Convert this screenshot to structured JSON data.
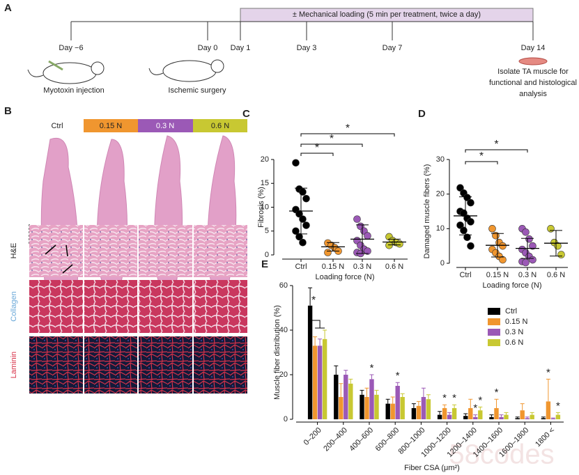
{
  "panel_a": {
    "letter": "A",
    "loading": "± Mechanical loading (5 min per treatment, twice a day)",
    "days": [
      "Day −6",
      "Day 0",
      "Day 1",
      "Day 3",
      "Day 7",
      "Day 14"
    ],
    "steps": [
      "Myotoxin injection",
      "Ischemic surgery"
    ],
    "outcome": [
      "Isolate TA muscle for",
      "functional and histological",
      "analysis"
    ]
  },
  "panel_b": {
    "letter": "B",
    "groups": [
      "Ctrl",
      "0.15 N",
      "0.3 N",
      "0.6 N"
    ],
    "stains": [
      "H&E",
      "Collagen",
      "Laminin"
    ]
  },
  "watermark": "58codes",
  "chart_data": [
    {
      "type": "dot",
      "panel": "C",
      "categories": [
        "Ctrl",
        "0.15 N",
        "0.3 N",
        "0.6 N"
      ],
      "colors": [
        "#000000",
        "#f0962f",
        "#9b59b6",
        "#c8c832"
      ],
      "points": [
        [
          19.3,
          13.8,
          13.2,
          11.8,
          9.5,
          8.6,
          7.5,
          6.2,
          5.0,
          3.8,
          2.6
        ],
        [
          2.5,
          2.0,
          1.5,
          0.8,
          0.5
        ],
        [
          7.5,
          6.0,
          5.0,
          4.0,
          3.0,
          2.0,
          1.2,
          0.8,
          0.5,
          0.3
        ],
        [
          3.8,
          3.0,
          2.6,
          2.3,
          2.0
        ]
      ],
      "mean": [
        9.2,
        1.7,
        3.3,
        2.7
      ],
      "sd": [
        4.8,
        0.9,
        3.0,
        0.6
      ],
      "ylim": [
        0,
        20
      ],
      "yticks": [
        0,
        5,
        10,
        15,
        20
      ],
      "y_label": "Fibrosis (%)",
      "x_label": "Loading force (N)",
      "annotations": [
        "*",
        "*",
        "*"
      ]
    },
    {
      "type": "dot",
      "panel": "D",
      "categories": [
        "Ctrl",
        "0.15 N",
        "0.3 N",
        "0.6 N"
      ],
      "colors": [
        "#000000",
        "#f0962f",
        "#9b59b6",
        "#c8c832"
      ],
      "points": [
        [
          21.8,
          20.3,
          19,
          17.5,
          15,
          14.5,
          13,
          12,
          11,
          9.5,
          7.5,
          5
        ],
        [
          10,
          8,
          6,
          5,
          4,
          3,
          2,
          1
        ],
        [
          10,
          9,
          7,
          5,
          4,
          3,
          2,
          1,
          0.5,
          0.2
        ],
        [
          10,
          6,
          5,
          2.5
        ]
      ],
      "mean": [
        13.7,
        5.2,
        4.3,
        5.8
      ],
      "sd": [
        5.5,
        3.4,
        2.9,
        3.7
      ],
      "ylim": [
        0,
        30
      ],
      "yticks": [
        0,
        10,
        20,
        30
      ],
      "y_label": "Damaged muscle fibers (%)",
      "x_label": "Loading force (N)",
      "annotations": [
        "*",
        "*"
      ]
    },
    {
      "type": "bar",
      "panel": "E",
      "categories": [
        "0–200",
        "200–400",
        "400–600",
        "600–800",
        "800–1000",
        "1000–1200",
        "1200–1400",
        "1400–1600",
        "1600–1800",
        "1800 <"
      ],
      "series": [
        {
          "name": "Ctrl",
          "color": "#000000",
          "values": [
            51,
            20,
            11,
            7,
            5,
            2,
            1.5,
            1,
            0.5,
            0.5
          ],
          "errors": [
            8,
            4,
            2,
            2,
            2,
            1.5,
            1,
            1,
            0.5,
            0.5
          ]
        },
        {
          "name": "0.15 N",
          "color": "#f0962f",
          "values": [
            33,
            10,
            10,
            7,
            6,
            5,
            5,
            5,
            4,
            8
          ],
          "errors": [
            4,
            6,
            4,
            3,
            2,
            1.5,
            4,
            4,
            3,
            10
          ]
        },
        {
          "name": "0.3 N",
          "color": "#9b59b6",
          "values": [
            33,
            20,
            18,
            15,
            10,
            2,
            1,
            1,
            0.5,
            0.3
          ],
          "errors": [
            3,
            2,
            2,
            1.5,
            4,
            1,
            1,
            1,
            0.5,
            0.3
          ]
        },
        {
          "name": "0.6 N",
          "color": "#c8c832",
          "values": [
            36,
            16,
            11,
            10,
            9,
            5,
            4,
            2,
            2,
            2
          ],
          "errors": [
            4,
            2,
            2,
            1.5,
            2,
            1.5,
            1.5,
            1,
            1,
            1
          ]
        }
      ],
      "ylim": [
        0,
        60
      ],
      "yticks": [
        0,
        20,
        40,
        60
      ],
      "y_label": "Muscle fiber distribution (%)",
      "x_label": "Fiber CSA (μm²)",
      "legend": "top-right",
      "annotations": [
        "*",
        "*",
        "*",
        "*",
        "*",
        "*",
        "*",
        "*",
        "*",
        "*"
      ]
    }
  ]
}
